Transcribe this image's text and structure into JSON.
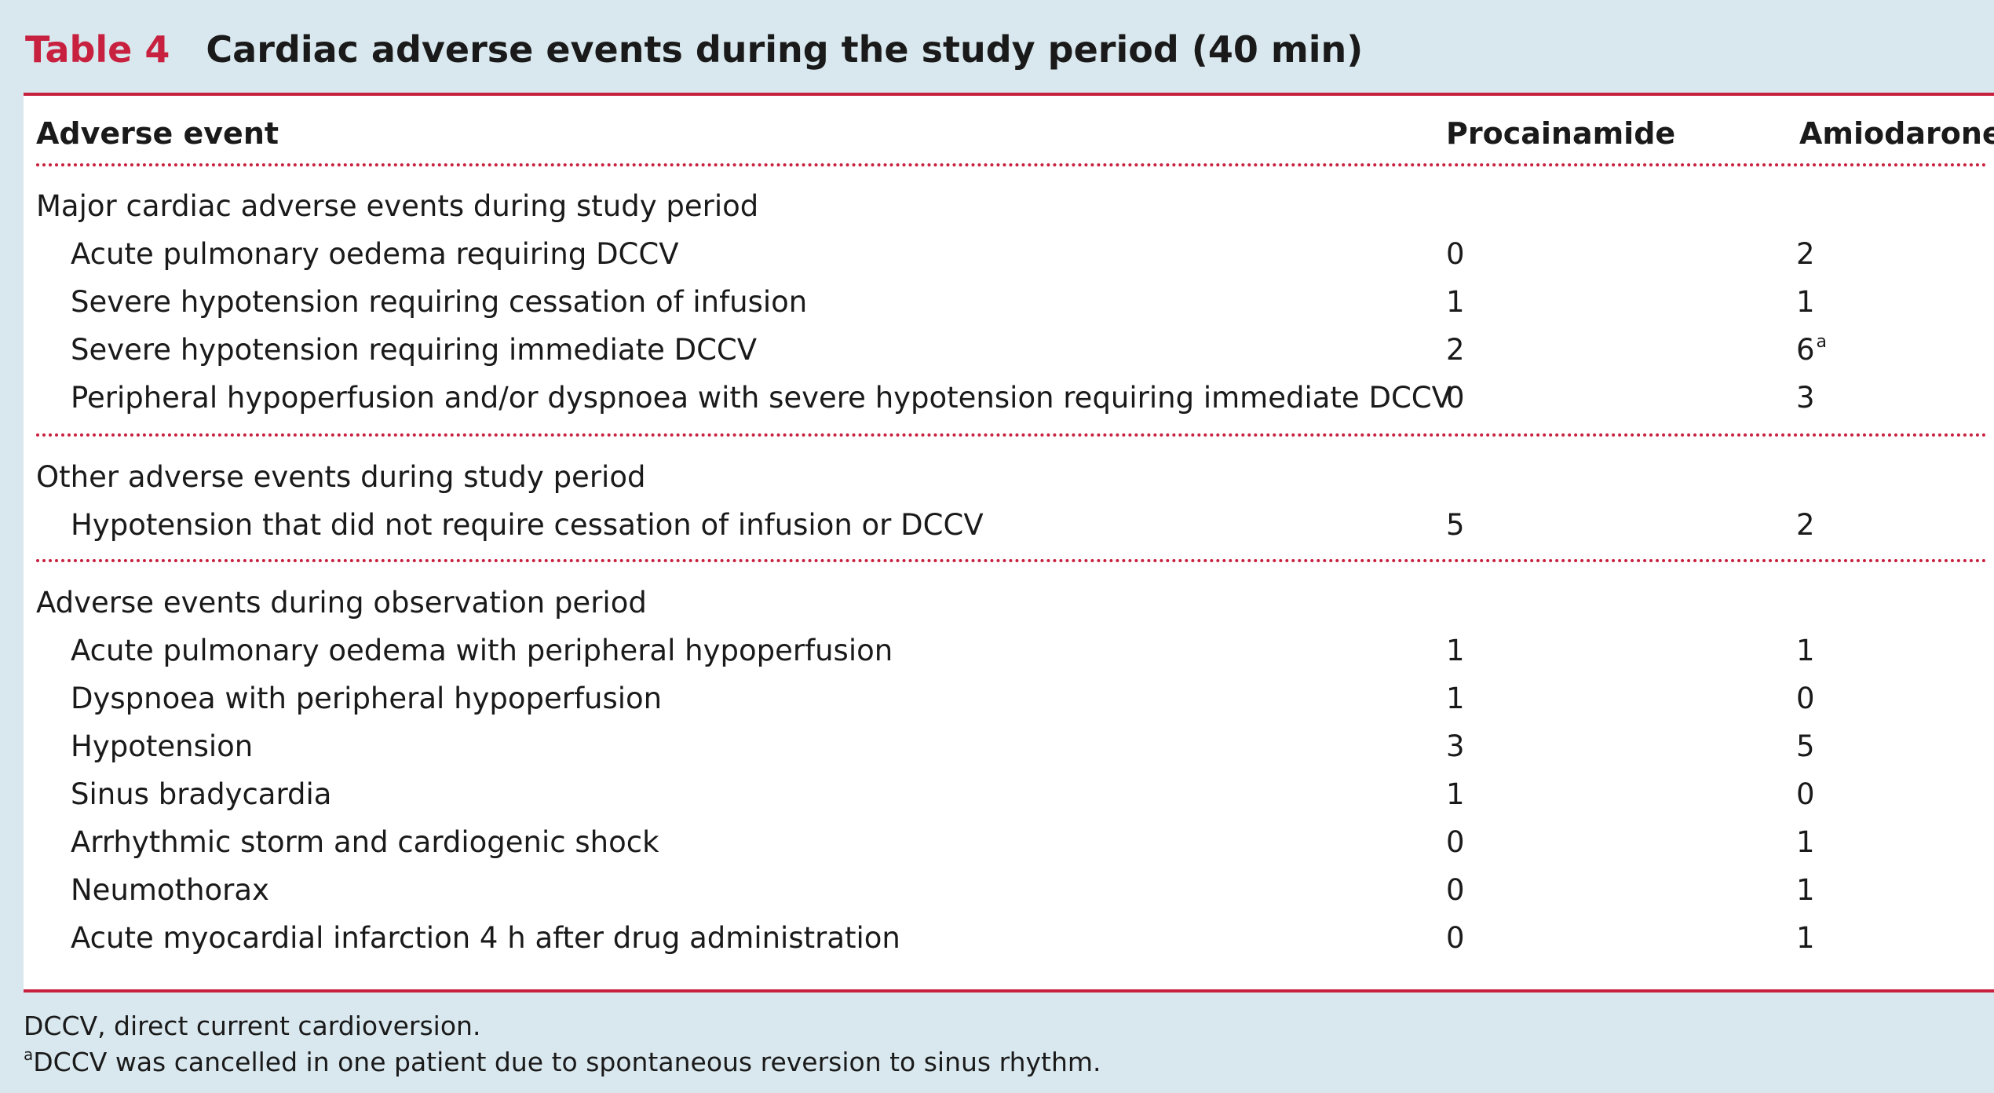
{
  "caption": {
    "label": "Table 4",
    "title": "Cardiac adverse events during the study period (40 min)"
  },
  "header": {
    "col1": "Adverse event",
    "col2": "Procainamide",
    "col3": "Amiodarone"
  },
  "sections": [
    {
      "title": "Major cardiac adverse events during study period",
      "rows": [
        {
          "label": "Acute pulmonary oedema requiring DCCV",
          "procainamide": "0",
          "amiodarone": "2",
          "amiodarone_note": ""
        },
        {
          "label": "Severe hypotension requiring cessation of infusion",
          "procainamide": "1",
          "amiodarone": "1",
          "amiodarone_note": ""
        },
        {
          "label": "Severe hypotension requiring immediate DCCV",
          "procainamide": "2",
          "amiodarone": "6",
          "amiodarone_note": "a"
        },
        {
          "label": "Peripheral hypoperfusion and/or dyspnoea with severe hypotension requiring immediate DCCV",
          "procainamide": "0",
          "amiodarone": "3",
          "amiodarone_note": ""
        }
      ]
    },
    {
      "title": "Other adverse events during study period",
      "rows": [
        {
          "label": "Hypotension that did not require cessation of infusion or DCCV",
          "procainamide": "5",
          "amiodarone": "2",
          "amiodarone_note": ""
        }
      ]
    },
    {
      "title": "Adverse events during observation period",
      "rows": [
        {
          "label": "Acute pulmonary oedema with peripheral hypoperfusion",
          "procainamide": "1",
          "amiodarone": "1",
          "amiodarone_note": ""
        },
        {
          "label": "Dyspnoea with peripheral hypoperfusion",
          "procainamide": "1",
          "amiodarone": "0",
          "amiodarone_note": ""
        },
        {
          "label": "Hypotension",
          "procainamide": "3",
          "amiodarone": "5",
          "amiodarone_note": ""
        },
        {
          "label": "Sinus bradycardia",
          "procainamide": "1",
          "amiodarone": "0",
          "amiodarone_note": ""
        },
        {
          "label": "Arrhythmic storm and cardiogenic shock",
          "procainamide": "0",
          "amiodarone": "1",
          "amiodarone_note": ""
        },
        {
          "label": "Neumothorax",
          "procainamide": "0",
          "amiodarone": "1",
          "amiodarone_note": ""
        },
        {
          "label": "Acute myocardial infarction 4 h after drug administration",
          "procainamide": "0",
          "amiodarone": "1",
          "amiodarone_note": ""
        }
      ]
    }
  ],
  "footnotes": {
    "abbrev": "DCCV, direct current cardioversion.",
    "note_marker": "a",
    "note_text": "DCCV was cancelled in one patient due to spontaneous reversion to sinus rhythm."
  },
  "colors": {
    "accent": "#c8203f",
    "background": "#d9e8ee"
  }
}
